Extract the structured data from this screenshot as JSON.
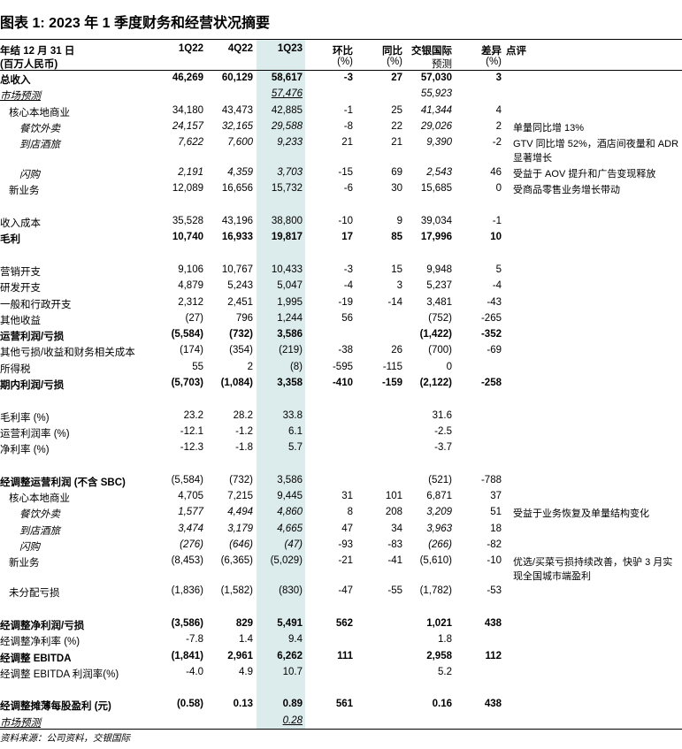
{
  "title": "图表 1: 2023 年 1 季度财务和经营状况摘要",
  "header": {
    "label1": "年结 12 月 31 日",
    "label2": "(百万人民币)",
    "c1": "1Q22",
    "c2": "4Q22",
    "c3": "1Q23",
    "c4a": "环比",
    "c4b": "(%)",
    "c5a": "同比",
    "c5b": "(%)",
    "c6a": "交银国际",
    "c6b": "预测",
    "c7a": "差异",
    "c7b": "(%)",
    "c8": "点评"
  },
  "rows": [
    {
      "label": "总收入",
      "style": "bold",
      "v": [
        "46,269",
        "60,129",
        "58,617",
        "-3",
        "27",
        "57,030",
        "3"
      ],
      "comment": ""
    },
    {
      "label": "市场预测",
      "style": "ul",
      "v": [
        "",
        "",
        "57,476",
        "",
        "",
        "55,923",
        ""
      ],
      "comment": ""
    },
    {
      "label": "核心本地商业",
      "style": "ind1 it6",
      "v": [
        "34,180",
        "43,473",
        "42,885",
        "-1",
        "25",
        "41,344",
        "4"
      ],
      "comment": ""
    },
    {
      "label": "餐饮外卖",
      "style": "ind2 it",
      "v": [
        "24,157",
        "32,165",
        "29,588",
        "-8",
        "22",
        "29,026",
        "2"
      ],
      "comment": "单量同比增 13%"
    },
    {
      "label": "到店酒旅",
      "style": "ind2 it tall",
      "v": [
        "7,622",
        "7,600",
        "9,233",
        "21",
        "21",
        "9,390",
        "-2"
      ],
      "comment": "GTV 同比增 52%，酒店间夜量和 ADR 显著增长"
    },
    {
      "label": "闪购",
      "style": "ind2 it",
      "v": [
        "2,191",
        "4,359",
        "3,703",
        "-15",
        "69",
        "2,543",
        "46"
      ],
      "comment": "受益于 AOV 提升和广告变现释放"
    },
    {
      "label": "新业务",
      "style": "ind1",
      "v": [
        "12,089",
        "16,656",
        "15,732",
        "-6",
        "30",
        "15,685",
        "0"
      ],
      "comment": "受商品零售业务增长带动"
    },
    {
      "label": "",
      "style": "",
      "v": [
        "",
        "",
        "",
        "",
        "",
        "",
        ""
      ],
      "comment": ""
    },
    {
      "label": "收入成本",
      "style": "",
      "v": [
        "35,528",
        "43,196",
        "38,800",
        "-10",
        "9",
        "39,034",
        "-1"
      ],
      "comment": ""
    },
    {
      "label": "毛利",
      "style": "bold",
      "v": [
        "10,740",
        "16,933",
        "19,817",
        "17",
        "85",
        "17,996",
        "10"
      ],
      "comment": ""
    },
    {
      "label": "",
      "style": "",
      "v": [
        "",
        "",
        "",
        "",
        "",
        "",
        ""
      ],
      "comment": ""
    },
    {
      "label": "营销开支",
      "style": "",
      "v": [
        "9,106",
        "10,767",
        "10,433",
        "-3",
        "15",
        "9,948",
        "5"
      ],
      "comment": ""
    },
    {
      "label": "研发开支",
      "style": "",
      "v": [
        "4,879",
        "5,243",
        "5,047",
        "-4",
        "3",
        "5,237",
        "-4"
      ],
      "comment": ""
    },
    {
      "label": "一般和行政开支",
      "style": "",
      "v": [
        "2,312",
        "2,451",
        "1,995",
        "-19",
        "-14",
        "3,481",
        "-43"
      ],
      "comment": ""
    },
    {
      "label": "其他收益",
      "style": "",
      "v": [
        "(27)",
        "796",
        "1,244",
        "56",
        "",
        "(752)",
        "-265"
      ],
      "comment": ""
    },
    {
      "label": "运营利润/亏损",
      "style": "bold",
      "v": [
        "(5,584)",
        "(732)",
        "3,586",
        "",
        "",
        "(1,422)",
        "-352"
      ],
      "comment": ""
    },
    {
      "label": "其他亏损/收益和财务相关成本",
      "style": "",
      "v": [
        "(174)",
        "(354)",
        "(219)",
        "-38",
        "26",
        "(700)",
        "-69"
      ],
      "comment": ""
    },
    {
      "label": "所得税",
      "style": "",
      "v": [
        "55",
        "2",
        "(8)",
        "-595",
        "-115",
        "0",
        ""
      ],
      "comment": ""
    },
    {
      "label": "期内利润/亏损",
      "style": "bold",
      "v": [
        "(5,703)",
        "(1,084)",
        "3,358",
        "-410",
        "-159",
        "(2,122)",
        "-258"
      ],
      "comment": ""
    },
    {
      "label": "",
      "style": "",
      "v": [
        "",
        "",
        "",
        "",
        "",
        "",
        ""
      ],
      "comment": ""
    },
    {
      "label": "毛利率 (%)",
      "style": "",
      "v": [
        "23.2",
        "28.2",
        "33.8",
        "",
        "",
        "31.6",
        ""
      ],
      "comment": ""
    },
    {
      "label": "运营利润率 (%)",
      "style": "",
      "v": [
        "-12.1",
        "-1.2",
        "6.1",
        "",
        "",
        "-2.5",
        ""
      ],
      "comment": ""
    },
    {
      "label": "净利率 (%)",
      "style": "",
      "v": [
        "-12.3",
        "-1.8",
        "5.7",
        "",
        "",
        "-3.7",
        ""
      ],
      "comment": ""
    },
    {
      "label": "",
      "style": "",
      "v": [
        "",
        "",
        "",
        "",
        "",
        "",
        ""
      ],
      "comment": ""
    },
    {
      "label": "经调整运营利润 (不含 SBC)",
      "style": "boldlabel",
      "v": [
        "(5,584)",
        "(732)",
        "3,586",
        "",
        "",
        "(521)",
        "-788"
      ],
      "comment": ""
    },
    {
      "label": "核心本地商业",
      "style": "ind1",
      "v": [
        "4,705",
        "7,215",
        "9,445",
        "31",
        "101",
        "6,871",
        "37"
      ],
      "comment": ""
    },
    {
      "label": "餐饮外卖",
      "style": "ind2 it",
      "v": [
        "1,577",
        "4,494",
        "4,860",
        "8",
        "208",
        "3,209",
        "51"
      ],
      "comment": "受益于业务恢复及单量结构变化"
    },
    {
      "label": "到店酒旅",
      "style": "ind2 it",
      "v": [
        "3,474",
        "3,179",
        "4,665",
        "47",
        "34",
        "3,963",
        "18"
      ],
      "comment": ""
    },
    {
      "label": "闪购",
      "style": "ind2 it",
      "v": [
        "(276)",
        "(646)",
        "(47)",
        "-93",
        "-83",
        "(266)",
        "-82"
      ],
      "comment": ""
    },
    {
      "label": "新业务",
      "style": "ind1 tall",
      "v": [
        "(8,453)",
        "(6,365)",
        "(5,029)",
        "-21",
        "-41",
        "(5,610)",
        "-10"
      ],
      "comment": "优选/买菜亏损持续改善，快驴 3 月实现全国城市端盈利"
    },
    {
      "label": "未分配亏损",
      "style": "ind1",
      "v": [
        "(1,836)",
        "(1,582)",
        "(830)",
        "-47",
        "-55",
        "(1,782)",
        "-53"
      ],
      "comment": ""
    },
    {
      "label": "",
      "style": "",
      "v": [
        "",
        "",
        "",
        "",
        "",
        "",
        ""
      ],
      "comment": ""
    },
    {
      "label": "经调整净利润/亏损",
      "style": "bold",
      "v": [
        "(3,586)",
        "829",
        "5,491",
        "562",
        "",
        "1,021",
        "438"
      ],
      "comment": ""
    },
    {
      "label": "经调整净利率 (%)",
      "style": "",
      "v": [
        "-7.8",
        "1.4",
        "9.4",
        "",
        "",
        "1.8",
        ""
      ],
      "comment": ""
    },
    {
      "label": "经调整 EBITDA",
      "style": "bold",
      "v": [
        "(1,841)",
        "2,961",
        "6,262",
        "111",
        "",
        "2,958",
        "112"
      ],
      "comment": ""
    },
    {
      "label": "经调整 EBITDA 利润率(%)",
      "style": "",
      "v": [
        "-4.0",
        "4.9",
        "10.7",
        "",
        "",
        "5.2",
        ""
      ],
      "comment": ""
    },
    {
      "label": "",
      "style": "",
      "v": [
        "",
        "",
        "",
        "",
        "",
        "",
        ""
      ],
      "comment": ""
    },
    {
      "label": "经调整摊薄每股盈利 (元)",
      "style": "bold",
      "v": [
        "(0.58)",
        "0.13",
        "0.89",
        "561",
        "",
        "0.16",
        "438"
      ],
      "comment": ""
    },
    {
      "label": "市场预测",
      "style": "ul",
      "v": [
        "",
        "",
        "0.28",
        "",
        "",
        "",
        ""
      ],
      "comment": ""
    }
  ],
  "footer": "资料来源：公司资料，交银国际"
}
